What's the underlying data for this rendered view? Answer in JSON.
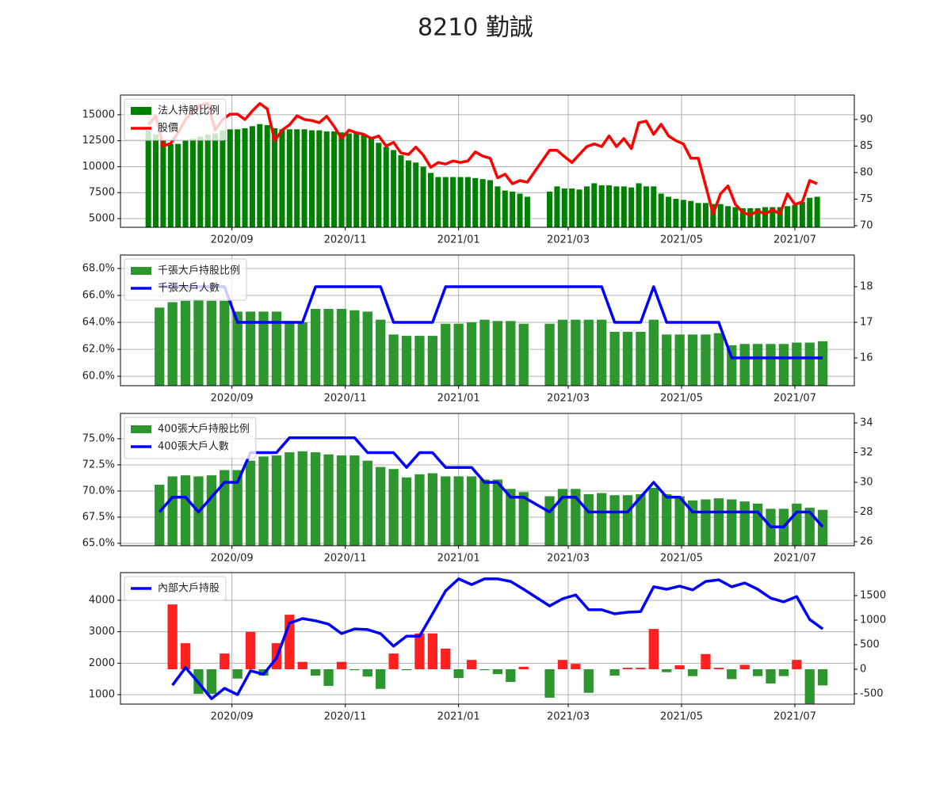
{
  "title": "8210 勤誠",
  "chart_data": [
    {
      "type": "combo",
      "legend": "upper left",
      "grid": true,
      "xlim": [
        2,
        397
      ],
      "xticks": [
        {
          "value": 62,
          "label": "2020/09"
        },
        {
          "value": 123,
          "label": "2020/11"
        },
        {
          "value": 184,
          "label": "2021/01"
        },
        {
          "value": 243,
          "label": "2021/03"
        },
        {
          "value": 304,
          "label": "2021/05"
        },
        {
          "value": 365,
          "label": "2021/07"
        }
      ],
      "ylim": [
        4160,
        16900
      ],
      "yticks": [
        5000,
        7500,
        10000,
        12500,
        15000
      ],
      "y2lim": [
        69.7,
        94.6
      ],
      "y2ticks": [
        70,
        75,
        80,
        85,
        90
      ],
      "x": [
        17,
        21,
        25,
        29,
        33,
        37,
        41,
        45,
        49,
        53,
        57,
        61,
        65,
        69,
        73,
        77,
        81,
        85,
        89,
        93,
        97,
        101,
        105,
        109,
        113,
        117,
        121,
        125,
        129,
        133,
        137,
        141,
        145,
        149,
        153,
        157,
        161,
        165,
        169,
        173,
        177,
        181,
        185,
        189,
        193,
        197,
        201,
        205,
        209,
        213,
        217,
        221,
        233,
        237,
        241,
        245,
        249,
        253,
        257,
        261,
        265,
        269,
        273,
        277,
        281,
        285,
        289,
        293,
        297,
        301,
        305,
        309,
        313,
        317,
        321,
        325,
        329,
        333,
        337,
        341,
        345,
        349,
        353,
        357,
        361,
        365,
        369,
        373,
        377
      ],
      "series": [
        {
          "name": "法人持股比例",
          "type": "bar",
          "color": "#008000",
          "values": [
            13500,
            13100,
            12500,
            12200,
            12200,
            12500,
            12700,
            12900,
            13100,
            13200,
            13500,
            13600,
            13600,
            13700,
            13900,
            14100,
            14000,
            13700,
            13600,
            13600,
            13600,
            13600,
            13500,
            13500,
            13400,
            13400,
            13300,
            13200,
            13200,
            13100,
            12900,
            12300,
            11900,
            11600,
            11100,
            10600,
            10400,
            10000,
            9400,
            9000,
            9000,
            9000,
            9000,
            9000,
            8900,
            8800,
            8700,
            8100,
            7700,
            7600,
            7400,
            7100,
            7600,
            8100,
            7900,
            7900,
            7800,
            8100,
            8400,
            8200,
            8200,
            8100,
            8100,
            8000,
            8400,
            8100,
            8100,
            7400,
            7100,
            6900,
            6800,
            6700,
            6500,
            6500,
            6400,
            6400,
            6200,
            6100,
            6000,
            6000,
            6000,
            6100,
            6100,
            6100,
            6200,
            6300,
            6600,
            7000,
            7100
          ]
        },
        {
          "name": "股價",
          "type": "line",
          "axis": "y2",
          "color": "#ff0000",
          "values": [
            89,
            90.7,
            85,
            85.5,
            87.5,
            90,
            91.6,
            92.7,
            93,
            88,
            90,
            91,
            91,
            90,
            91.6,
            93,
            92,
            86,
            88,
            89,
            90.7,
            90,
            89.8,
            89.4,
            90.6,
            88.7,
            86.4,
            88,
            87.5,
            87.2,
            86.4,
            86.9,
            85,
            85.7,
            83.7,
            83.4,
            84.8,
            83.3,
            81,
            81.9,
            81.6,
            82.2,
            81.9,
            82.2,
            83.9,
            83.1,
            82.7,
            79,
            79.7,
            77.9,
            78.5,
            78.2,
            84.2,
            84.2,
            83,
            81.9,
            83.4,
            84.9,
            85.4,
            84.9,
            86.9,
            84.9,
            86.4,
            84.5,
            89.4,
            89.7,
            87.2,
            89.1,
            86.9,
            86,
            85.4,
            82.7,
            82.7,
            77.5,
            72.2,
            76,
            77.5,
            74,
            72.5,
            72,
            72.8,
            72.2,
            73,
            72.2,
            76,
            74,
            74.5,
            78.5,
            77.9
          ]
        }
      ]
    },
    {
      "type": "combo",
      "legend": "upper left",
      "grid": true,
      "xlim": [
        2,
        397
      ],
      "xticks": [
        {
          "value": 62,
          "label": "2020/09"
        },
        {
          "value": 123,
          "label": "2020/11"
        },
        {
          "value": 184,
          "label": "2021/01"
        },
        {
          "value": 243,
          "label": "2021/03"
        },
        {
          "value": 304,
          "label": "2021/05"
        },
        {
          "value": 365,
          "label": "2021/07"
        }
      ],
      "ylim": [
        59.3,
        69.0
      ],
      "yticks": [
        {
          "value": 60,
          "label": "60.0%"
        },
        {
          "value": 62,
          "label": "62.0%"
        },
        {
          "value": 64,
          "label": "64.0%"
        },
        {
          "value": 66,
          "label": "66.0%"
        },
        {
          "value": 68,
          "label": "68.0%"
        }
      ],
      "y2lim": [
        15.22,
        18.89
      ],
      "y2ticks": [
        16,
        17,
        18
      ],
      "x": [
        23,
        30,
        37,
        44,
        51,
        58,
        65,
        72,
        79,
        86,
        93,
        100,
        107,
        114,
        121,
        128,
        135,
        142,
        149,
        156,
        163,
        170,
        177,
        184,
        191,
        198,
        205,
        212,
        219,
        233,
        240,
        247,
        254,
        261,
        268,
        275,
        282,
        289,
        296,
        303,
        310,
        317,
        324,
        331,
        338,
        345,
        352,
        359,
        366,
        373,
        380
      ],
      "series": [
        {
          "name": "千張大戶持股比例",
          "type": "bar",
          "color": "#2e962e",
          "values": [
            65.1,
            65.5,
            65.6,
            65.7,
            65.6,
            65.6,
            64.8,
            64.8,
            64.8,
            64.8,
            64.1,
            64.0,
            65.0,
            65.0,
            65.0,
            64.9,
            64.8,
            64.2,
            63.1,
            63.0,
            63.0,
            63.0,
            63.9,
            63.9,
            64.0,
            64.2,
            64.1,
            64.1,
            63.9,
            63.9,
            64.2,
            64.2,
            64.2,
            64.2,
            63.3,
            63.3,
            63.3,
            64.2,
            63.1,
            63.1,
            63.1,
            63.1,
            63.2,
            62.3,
            62.4,
            62.4,
            62.4,
            62.4,
            62.5,
            62.5,
            62.6
          ]
        },
        {
          "name": "千張大戶人數",
          "type": "line",
          "axis": "y2",
          "color": "#0000ff",
          "values": [
            18,
            18,
            18,
            18,
            18,
            18,
            17,
            17,
            17,
            17,
            17,
            17,
            18,
            18,
            18,
            18,
            18,
            18,
            17,
            17,
            17,
            17,
            18,
            18,
            18,
            18,
            18,
            18,
            18,
            18,
            18,
            18,
            18,
            18,
            17,
            17,
            17,
            18,
            17,
            17,
            17,
            17,
            17,
            16,
            16,
            16,
            16,
            16,
            16,
            16,
            16
          ]
        }
      ]
    },
    {
      "type": "combo",
      "legend": "upper left",
      "grid": true,
      "xlim": [
        2,
        397
      ],
      "xticks": [
        {
          "value": 62,
          "label": "2020/09"
        },
        {
          "value": 123,
          "label": "2020/11"
        },
        {
          "value": 184,
          "label": "2021/01"
        },
        {
          "value": 243,
          "label": "2021/03"
        },
        {
          "value": 304,
          "label": "2021/05"
        },
        {
          "value": 365,
          "label": "2021/07"
        }
      ],
      "ylim": [
        64.77,
        77.42
      ],
      "yticks": [
        {
          "value": 65,
          "label": "65.0%"
        },
        {
          "value": 67.5,
          "label": "67.5%"
        },
        {
          "value": 70,
          "label": "70.0%"
        },
        {
          "value": 72.5,
          "label": "72.5%"
        },
        {
          "value": 75,
          "label": "75.0%"
        }
      ],
      "y2lim": [
        25.73,
        34.64
      ],
      "y2ticks": [
        26,
        28,
        30,
        32,
        34
      ],
      "x": [
        23,
        30,
        37,
        44,
        51,
        58,
        65,
        72,
        79,
        86,
        93,
        100,
        107,
        114,
        121,
        128,
        135,
        142,
        149,
        156,
        163,
        170,
        177,
        184,
        191,
        198,
        205,
        212,
        219,
        233,
        240,
        247,
        254,
        261,
        268,
        275,
        282,
        289,
        296,
        303,
        310,
        317,
        324,
        331,
        338,
        345,
        352,
        359,
        366,
        373,
        380
      ],
      "series": [
        {
          "name": "400張大戶持股比例",
          "type": "bar",
          "color": "#2e962e",
          "values": [
            70.6,
            71.4,
            71.5,
            71.4,
            71.5,
            72.0,
            72.0,
            72.9,
            73.3,
            73.4,
            73.7,
            73.8,
            73.7,
            73.5,
            73.4,
            73.4,
            72.9,
            72.3,
            72.1,
            71.3,
            71.6,
            71.7,
            71.4,
            71.4,
            71.4,
            71.1,
            71.1,
            70.2,
            69.9,
            69.5,
            70.2,
            70.2,
            69.7,
            69.8,
            69.6,
            69.6,
            69.7,
            70.3,
            69.7,
            69.5,
            69.1,
            69.2,
            69.3,
            69.2,
            69.0,
            68.8,
            68.3,
            68.3,
            68.8,
            68.4,
            68.2
          ]
        },
        {
          "name": "400張大戶人數",
          "type": "line",
          "axis": "y2",
          "color": "#0000ff",
          "values": [
            28,
            29,
            29,
            28,
            29,
            30,
            30,
            32,
            32,
            32,
            33,
            33,
            33,
            33,
            33,
            33,
            32,
            32,
            32,
            31,
            32,
            32,
            31,
            31,
            31,
            30,
            30,
            29,
            29,
            28,
            29,
            29,
            28,
            28,
            28,
            28,
            29,
            30,
            29,
            29,
            28,
            28,
            28,
            28,
            28,
            28,
            27,
            27,
            28,
            28,
            27
          ]
        }
      ]
    },
    {
      "type": "combo",
      "legend": "upper left",
      "grid": true,
      "xlim": [
        2,
        397
      ],
      "xticks": [
        {
          "value": 62,
          "label": "2020/09"
        },
        {
          "value": 123,
          "label": "2020/11"
        },
        {
          "value": 184,
          "label": "2021/01"
        },
        {
          "value": 243,
          "label": "2021/03"
        },
        {
          "value": 304,
          "label": "2021/05"
        },
        {
          "value": 365,
          "label": "2021/07"
        }
      ],
      "ylim": [
        700,
        4880
      ],
      "yticks": [
        1000,
        2000,
        3000,
        4000
      ],
      "y2lim": [
        -710,
        1968
      ],
      "y2ticks": [
        -500,
        0,
        500,
        1000,
        1500
      ],
      "x": [
        30,
        37,
        44,
        51,
        58,
        65,
        72,
        79,
        86,
        93,
        100,
        107,
        114,
        121,
        128,
        135,
        142,
        149,
        156,
        163,
        170,
        177,
        184,
        191,
        198,
        205,
        212,
        219,
        233,
        240,
        247,
        254,
        261,
        268,
        275,
        282,
        289,
        296,
        303,
        310,
        317,
        324,
        331,
        338,
        345,
        352,
        359,
        366,
        373,
        380
      ],
      "series": [
        {
          "type": "bar",
          "axis": "y2",
          "positive_color": "#ff2020",
          "negative_color": "#2e962e",
          "values": [
            1320,
            530,
            -500,
            -500,
            320,
            -190,
            760,
            -130,
            530,
            1110,
            150,
            -130,
            -340,
            150,
            -20,
            -150,
            -400,
            320,
            -20,
            730,
            730,
            420,
            -180,
            190,
            -20,
            -100,
            -260,
            50,
            -580,
            190,
            110,
            -480,
            0,
            -130,
            30,
            30,
            820,
            -60,
            80,
            -140,
            310,
            30,
            -200,
            90,
            -140,
            -290,
            -140,
            190,
            -700,
            -330
          ]
        },
        {
          "name": "內部大戶持股",
          "type": "line",
          "color": "#0000ff",
          "values": [
            1300,
            1860,
            1380,
            870,
            1200,
            1000,
            1760,
            1650,
            2160,
            3270,
            3420,
            3350,
            3240,
            2940,
            3090,
            3070,
            2940,
            2540,
            2860,
            2860,
            3570,
            4300,
            4680,
            4500,
            4680,
            4680,
            4600,
            4350,
            3820,
            4050,
            4170,
            3700,
            3700,
            3570,
            3620,
            3640,
            4430,
            4350,
            4450,
            4330,
            4600,
            4650,
            4430,
            4550,
            4350,
            4070,
            3950,
            4120,
            3390,
            3090
          ]
        }
      ]
    }
  ]
}
